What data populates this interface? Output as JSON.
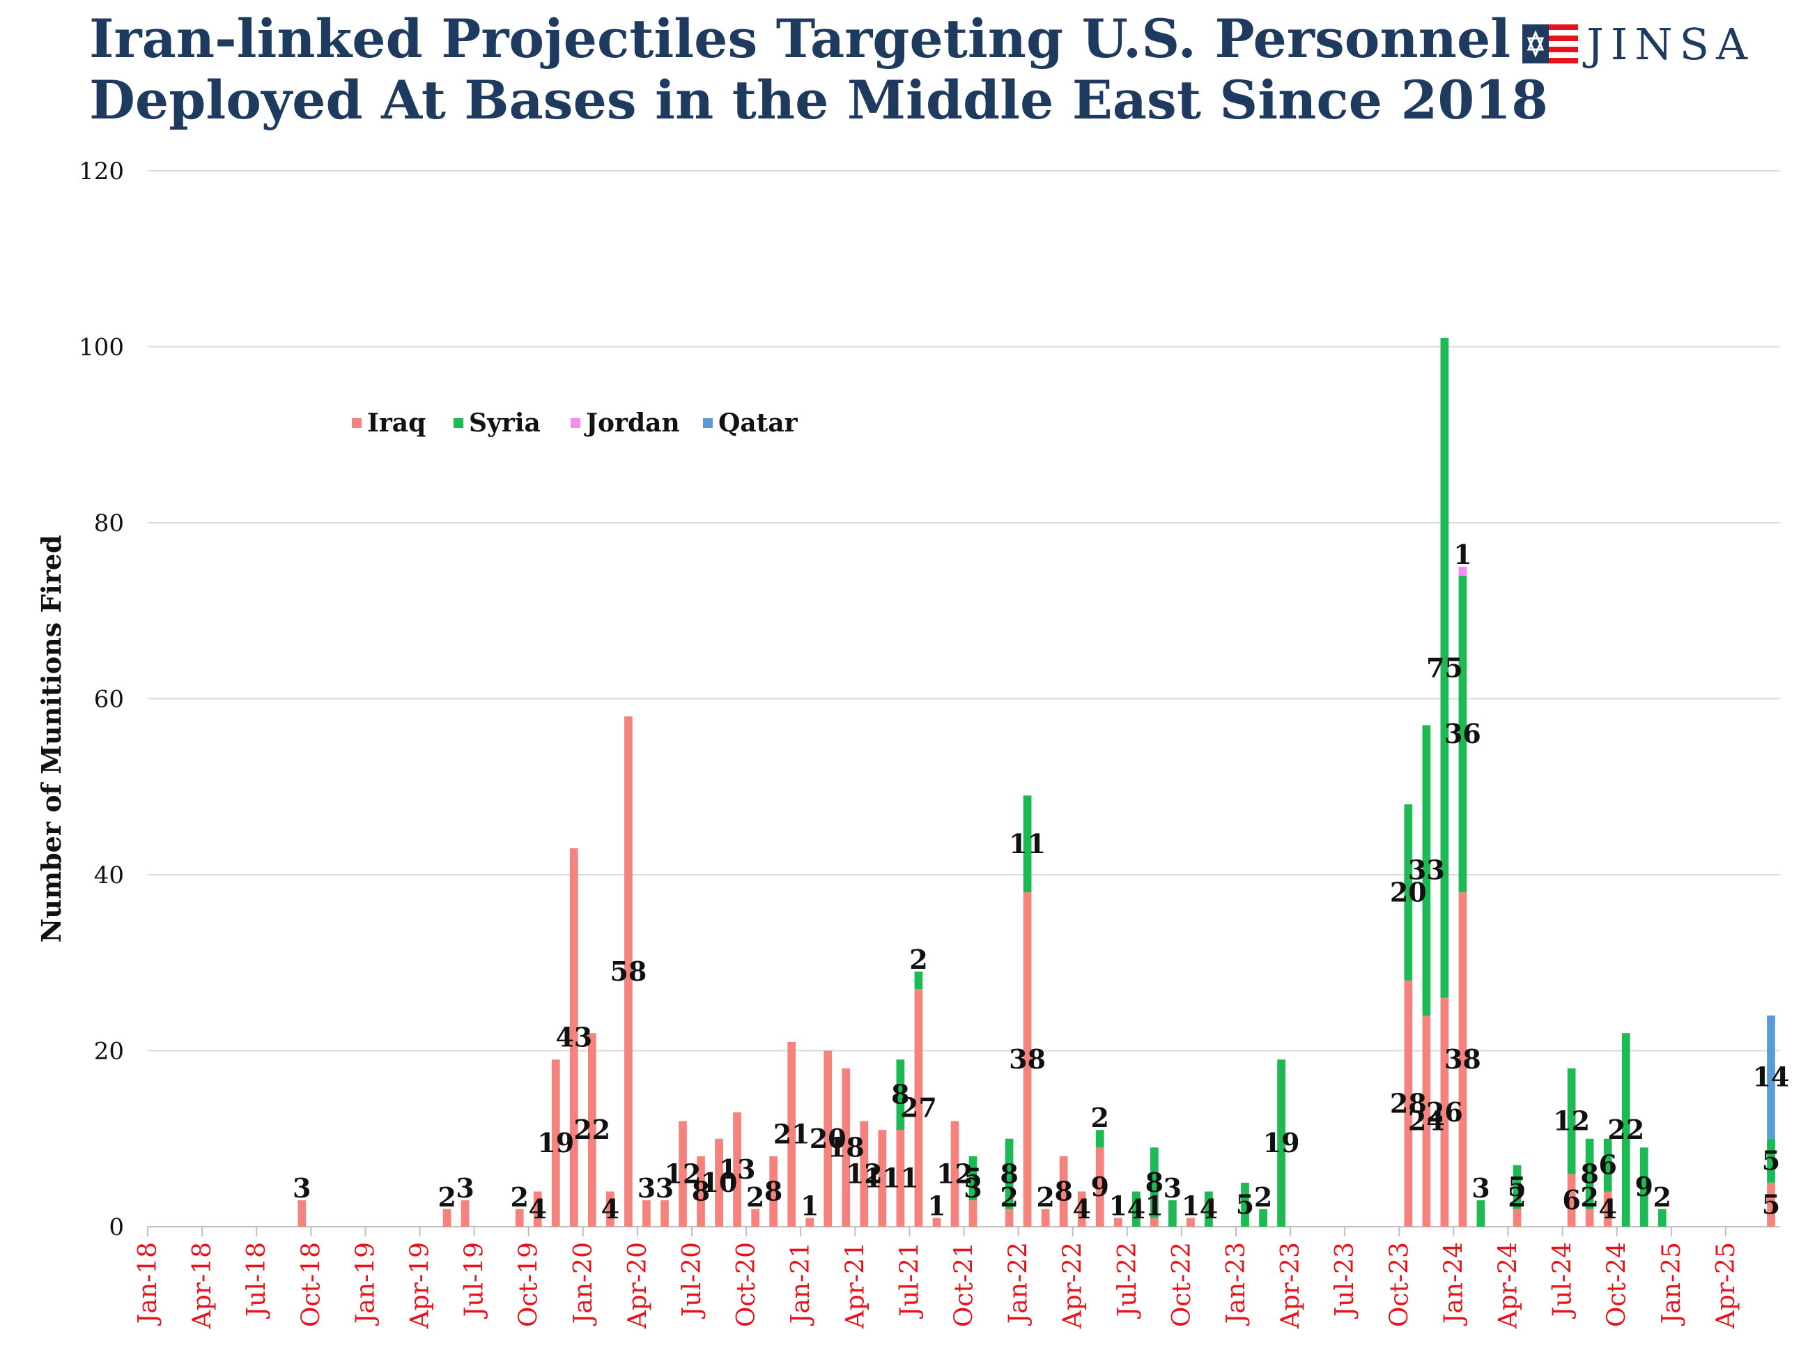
{
  "title_line1": "Iran-linked Projectiles Targeting U.S. Personnel",
  "title_line2": "Deployed At Bases in the Middle East Since 2018",
  "logo_text": "JINSA",
  "colors": {
    "Iraq": "#f4837d",
    "Syria": "#1db954",
    "Jordan": "#f28ef2",
    "Qatar": "#5b9bd5",
    "title": "#1f3a5f",
    "xtick": "#e8121b",
    "grid": "#d9d9d9"
  },
  "chart_data": {
    "type": "bar",
    "stacked": true,
    "title": "Iran-linked Projectiles Targeting U.S. Personnel Deployed At Bases in the Middle East Since 2018",
    "ylabel": "Number of Munitions Fired",
    "xlabel": "",
    "ylim": [
      0,
      120
    ],
    "yticks": [
      0,
      20,
      40,
      60,
      80,
      100,
      120
    ],
    "grid": true,
    "legend_position": "upper-left",
    "x_start": "Jan-18",
    "months": [
      "Jan-18",
      "Feb-18",
      "Mar-18",
      "Apr-18",
      "May-18",
      "Jun-18",
      "Jul-18",
      "Aug-18",
      "Sep-18",
      "Oct-18",
      "Nov-18",
      "Dec-18",
      "Jan-19",
      "Feb-19",
      "Mar-19",
      "Apr-19",
      "May-19",
      "Jun-19",
      "Jul-19",
      "Aug-19",
      "Sep-19",
      "Oct-19",
      "Nov-19",
      "Dec-19",
      "Jan-20",
      "Feb-20",
      "Mar-20",
      "Apr-20",
      "May-20",
      "Jun-20",
      "Jul-20",
      "Aug-20",
      "Sep-20",
      "Oct-20",
      "Nov-20",
      "Dec-20",
      "Jan-21",
      "Feb-21",
      "Mar-21",
      "Apr-21",
      "May-21",
      "Jun-21",
      "Jul-21",
      "Aug-21",
      "Sep-21",
      "Oct-21",
      "Nov-21",
      "Dec-21",
      "Jan-22",
      "Feb-22",
      "Mar-22",
      "Apr-22",
      "May-22",
      "Jun-22",
      "Jul-22",
      "Aug-22",
      "Sep-22",
      "Oct-22",
      "Nov-22",
      "Dec-22",
      "Jan-23",
      "Feb-23",
      "Mar-23",
      "Apr-23",
      "May-23",
      "Jun-23",
      "Jul-23",
      "Aug-23",
      "Sep-23",
      "Oct-23",
      "Nov-23",
      "Dec-23",
      "Jan-24",
      "Feb-24",
      "Mar-24",
      "Apr-24",
      "May-24",
      "Jun-24",
      "Jul-24",
      "Aug-24",
      "Sep-24",
      "Oct-24",
      "Nov-24",
      "Dec-24",
      "Jan-25",
      "Feb-25",
      "Mar-25",
      "Apr-25",
      "May-25",
      "Jun-25"
    ],
    "x_tick_labels": [
      "Jan-18",
      "Apr-18",
      "Jul-18",
      "Oct-18",
      "Jan-19",
      "Apr-19",
      "Jul-19",
      "Oct-19",
      "Jan-20",
      "Apr-20",
      "Jul-20",
      "Oct-20",
      "Jan-21",
      "Apr-21",
      "Jul-21",
      "Oct-21",
      "Jan-22",
      "Apr-22",
      "Jul-22",
      "Oct-22",
      "Jan-23",
      "Apr-23",
      "Jul-23",
      "Oct-23",
      "Jan-24",
      "Apr-24",
      "Jul-24",
      "Oct-24",
      "Jan-25",
      "Apr-25"
    ],
    "series": [
      {
        "name": "Iraq",
        "values": {
          "Sep-18": 3,
          "May-19": 2,
          "Jun-19": 3,
          "Sep-19": 2,
          "Oct-19": 4,
          "Nov-19": 19,
          "Dec-19": 43,
          "Jan-20": 22,
          "Feb-20": 4,
          "Mar-20": 58,
          "Apr-20": 3,
          "May-20": 3,
          "Jun-20": 12,
          "Jul-20": 8,
          "Aug-20": 10,
          "Sep-20": 13,
          "Oct-20": 2,
          "Nov-20": 8,
          "Dec-20": 21,
          "Jan-21": 1,
          "Feb-21": 20,
          "Mar-21": 18,
          "Apr-21": 12,
          "May-21": 11,
          "Jun-21": 11,
          "Jul-21": 27,
          "Aug-21": 1,
          "Sep-21": 12,
          "Oct-21": 3,
          "Dec-21": 2,
          "Jan-22": 38,
          "Feb-22": 2,
          "Mar-22": 8,
          "Apr-22": 4,
          "May-22": 9,
          "Jun-22": 1,
          "Aug-22": 1,
          "Oct-22": 1,
          "Oct-23": 28,
          "Nov-23": 24,
          "Dec-23": 26,
          "Jan-24": 38,
          "Apr-24": 2,
          "Jul-24": 6,
          "Aug-24": 2,
          "Sep-24": 4,
          "Jun-25": 5
        }
      },
      {
        "name": "Syria",
        "values": {
          "Jun-21": 8,
          "Jul-21": 2,
          "Oct-21": 5,
          "Dec-21": 8,
          "Jan-22": 11,
          "May-22": 2,
          "Jul-22": 4,
          "Aug-22": 8,
          "Sep-22": 3,
          "Nov-22": 4,
          "Jan-23": 5,
          "Feb-23": 2,
          "Mar-23": 19,
          "Oct-23": 20,
          "Nov-23": 33,
          "Dec-23": 75,
          "Jan-24": 36,
          "Feb-24": 3,
          "Apr-24": 5,
          "Jul-24": 12,
          "Aug-24": 8,
          "Sep-24": 6,
          "Oct-24": 22,
          "Nov-24": 9,
          "Dec-24": 2,
          "Jun-25": 5
        }
      },
      {
        "name": "Jordan",
        "values": {
          "Jan-24": 1
        }
      },
      {
        "name": "Qatar",
        "values": {
          "Jun-25": 14
        }
      }
    ]
  }
}
